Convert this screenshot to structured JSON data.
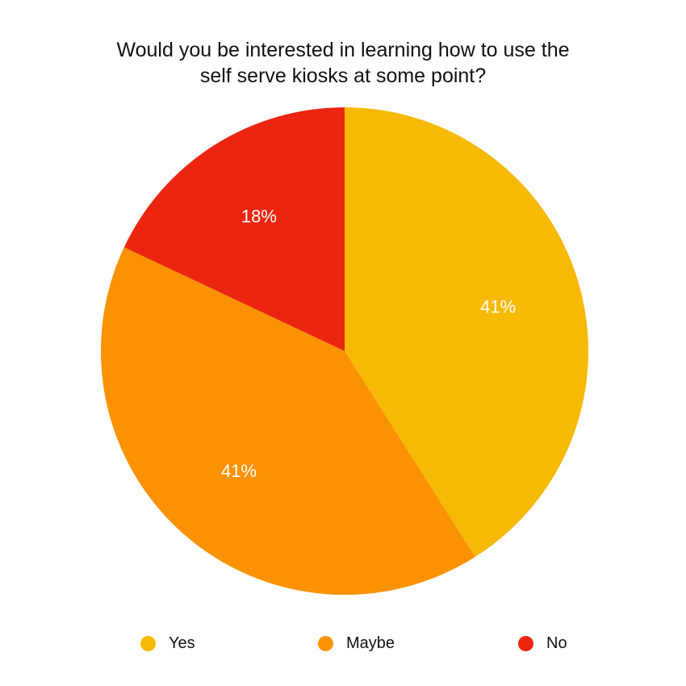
{
  "chart_data": {
    "type": "pie",
    "title_lines": [
      "Would you be interested in learning how to use the",
      "self serve kiosks at some point?"
    ],
    "slices": [
      {
        "name": "Yes",
        "value": 41,
        "label": "41%",
        "color": "#F6B904"
      },
      {
        "name": "Maybe",
        "value": 41,
        "label": "41%",
        "color": "#FA9204"
      },
      {
        "name": "No",
        "value": 18,
        "label": "18%",
        "color": "#EC2510"
      }
    ],
    "start_angle_deg": 0,
    "direction": "clockwise",
    "legend_position": "bottom"
  }
}
